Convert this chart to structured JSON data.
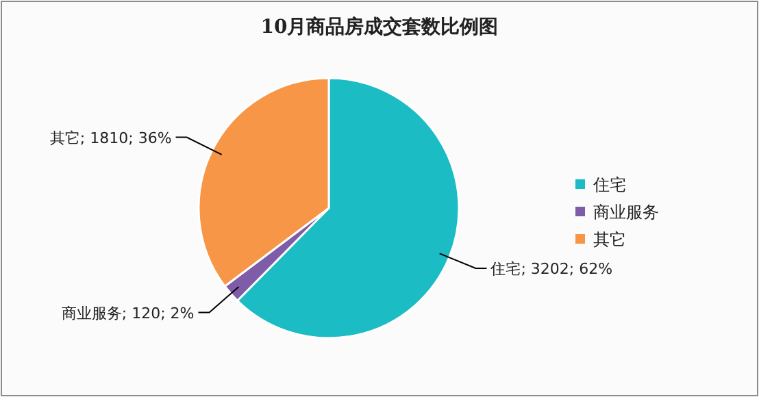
{
  "chart_data": {
    "type": "pie",
    "title": "10月商品房成交套数比例图",
    "categories": [
      "住宅",
      "商业服务",
      "其它"
    ],
    "values": [
      3202,
      120,
      1810
    ],
    "value_labels": [
      "; 3202; 62%",
      "; 120; 2%",
      "; 1810; 36%"
    ],
    "colors": [
      "#1bbcc4",
      "#7e5ca8",
      "#f79646"
    ],
    "legend": "right"
  }
}
